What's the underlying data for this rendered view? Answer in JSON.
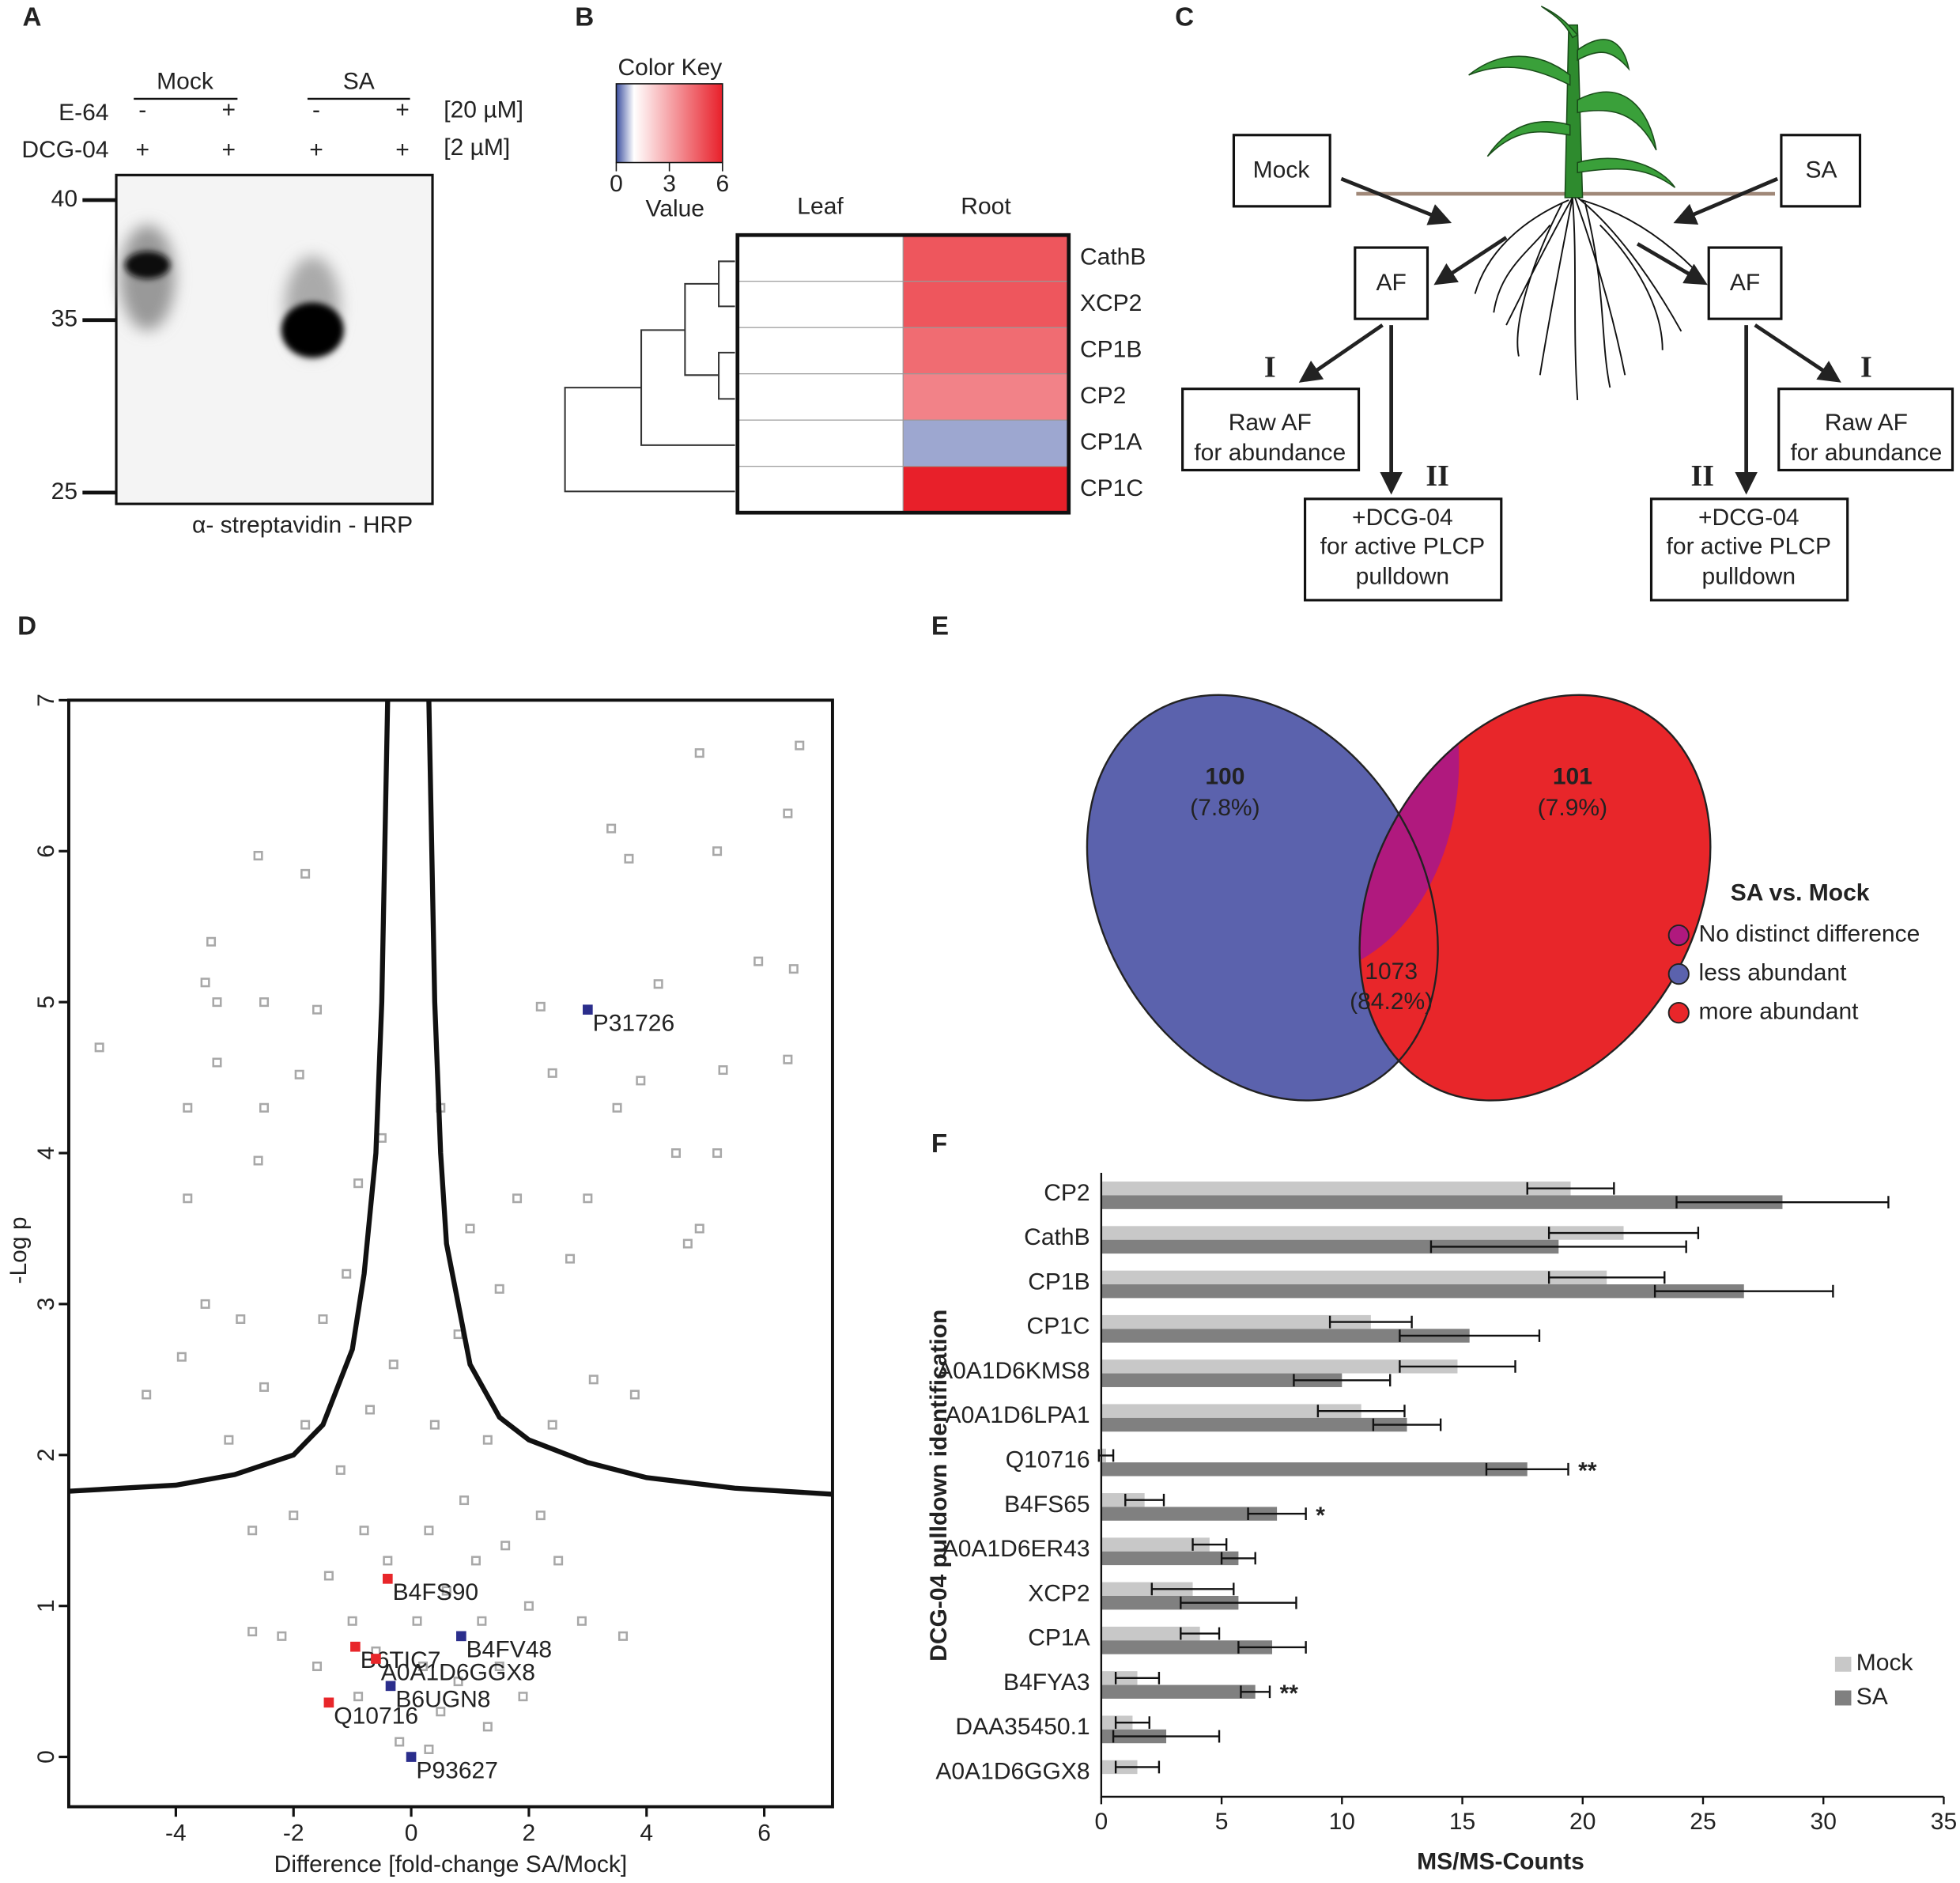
{
  "panel_labels": [
    "A",
    "B",
    "C",
    "D",
    "E",
    "F"
  ],
  "gel": {
    "groups": [
      "Mock",
      "SA"
    ],
    "rows": [
      {
        "name": "E-64",
        "signs": [
          "-",
          "+",
          "-",
          "+"
        ],
        "conc": "[20 µM]"
      },
      {
        "name": "DCG-04",
        "signs": [
          "+",
          "+",
          "+",
          "+"
        ],
        "conc": "[2 µM]"
      }
    ],
    "markers": [
      "40",
      "35",
      "25"
    ],
    "caption": "α- streptavidin - HRP"
  },
  "diagram": {
    "mock": "Mock",
    "sa": "SA",
    "af": "AF",
    "step1": "I",
    "step2": "II",
    "raw": [
      "Raw AF",
      "for abundance"
    ],
    "pulldown": [
      "+DCG-04",
      "for active PLCP",
      "pulldown"
    ]
  },
  "venn": {
    "regions": [
      {
        "count": "100",
        "percent": "(7.8%)"
      },
      {
        "count": "101",
        "percent": "(7.9%)"
      },
      {
        "count": "1073",
        "percent": "(84.2%)"
      }
    ],
    "legend_title": "SA vs. Mock",
    "legend": [
      {
        "label": "No distinct difference",
        "color": "#b0197e"
      },
      {
        "label": "less abundant",
        "color": "#5b62ad"
      },
      {
        "label": "more abundant",
        "color": "#e8262a"
      }
    ]
  },
  "chart_data": [
    {
      "type": "heatmap",
      "title": "Color Key",
      "colorbar_label": "Value",
      "colorbar_lim": [
        0,
        6
      ],
      "colorbar_ticks": [
        0,
        3,
        6
      ],
      "colors": [
        "#3b4fa0",
        "#ffffff",
        "#e8202a"
      ],
      "color_stops": [
        0,
        1,
        6
      ],
      "columns": [
        "Leaf",
        "Root"
      ],
      "rows": [
        "CathB",
        "XCP2",
        "CP1B",
        "CP2",
        "CP1A",
        "CP1C"
      ],
      "values": [
        [
          1,
          4.8
        ],
        [
          1,
          4.8
        ],
        [
          1,
          4.3
        ],
        [
          1,
          3.8
        ],
        [
          1,
          0.5
        ],
        [
          1,
          6
        ]
      ]
    },
    {
      "type": "scatter",
      "xlabel": "Difference [fold-change SA/Mock]",
      "ylabel": "-Log p",
      "xlim": [
        -5.82,
        7.16
      ],
      "ylim": [
        -0.33,
        7
      ],
      "xticks": [
        -4,
        -2,
        0,
        2,
        4,
        6
      ],
      "yticks": [
        0,
        1,
        2,
        3,
        4,
        5,
        6,
        7
      ],
      "series": [
        {
          "color": "#a8a8a8",
          "x": [
            6.6,
            4.9,
            3.4,
            6.4,
            5.2,
            3.7,
            -2.6,
            -1.8,
            -3.4,
            -3.5,
            5.9,
            6.5,
            -3.3,
            -2.5,
            4.2,
            -1.6,
            -5.3,
            2.2,
            6.4,
            -3.3,
            -1.9,
            3.9,
            5.3,
            -3.8,
            -2.5,
            2.4,
            3.5,
            4.5,
            5.2,
            -2.6,
            -3.8,
            3.0,
            4.9,
            4.7,
            -3.5,
            -1.1,
            2.7,
            -2.9,
            -2.5,
            -3.9,
            -4.5,
            -3.1,
            3.1,
            3.8,
            2.4,
            -2.7,
            -2.2,
            -2.7,
            2.5,
            2.9,
            3.6,
            -1.5,
            -0.9,
            -0.5,
            0.5,
            1.0,
            1.5,
            1.8,
            -1.8,
            -1.2,
            -0.8,
            -0.4,
            0.3,
            0.6,
            0.9,
            1.3,
            1.6,
            2.0,
            -1.4,
            -1.0,
            -0.6,
            0.2,
            0.5,
            0.8,
            1.2,
            1.5,
            -0.2,
            0.3,
            -0.9,
            1.9,
            -1.6,
            1.1,
            0.4,
            -0.3,
            0.8,
            -0.7,
            2.2,
            -2.0,
            0.1,
            1.3
          ],
          "y": [
            6.7,
            6.65,
            6.15,
            6.25,
            6.0,
            5.95,
            5.97,
            5.85,
            5.4,
            5.13,
            5.27,
            5.22,
            5.0,
            5.0,
            5.12,
            4.95,
            4.7,
            4.97,
            4.62,
            4.6,
            4.52,
            4.48,
            4.55,
            4.3,
            4.3,
            4.53,
            4.3,
            4.0,
            4.0,
            3.95,
            3.7,
            3.7,
            3.5,
            3.4,
            3.0,
            3.2,
            3.3,
            2.9,
            2.45,
            2.65,
            2.4,
            2.1,
            2.5,
            2.4,
            2.2,
            1.5,
            0.8,
            0.83,
            1.3,
            0.9,
            0.8,
            2.9,
            3.8,
            4.1,
            4.3,
            3.5,
            3.1,
            3.7,
            2.2,
            1.9,
            1.5,
            1.3,
            1.5,
            1.1,
            1.7,
            2.1,
            1.4,
            1.0,
            1.2,
            0.9,
            0.7,
            0.6,
            0.3,
            0.5,
            0.9,
            0.6,
            0.1,
            0.05,
            0.4,
            0.4,
            0.6,
            1.3,
            2.2,
            2.6,
            2.8,
            2.3,
            1.6,
            1.6,
            0.9,
            0.2
          ]
        }
      ],
      "points": [
        {
          "label": "P31726",
          "x": 3.0,
          "y": 4.95,
          "color": "#2b2e8c"
        },
        {
          "label": "B4FS90",
          "x": -0.4,
          "y": 1.18,
          "color": "#e8262a"
        },
        {
          "label": "B4FV48",
          "x": 0.85,
          "y": 0.8,
          "color": "#2b2e8c"
        },
        {
          "label": "B6TIC7",
          "x": -0.95,
          "y": 0.73,
          "color": "#e8262a"
        },
        {
          "label": "A0A1D6GGX8",
          "x": -0.6,
          "y": 0.65,
          "color": "#e8262a"
        },
        {
          "label": "B6UGN8",
          "x": -0.35,
          "y": 0.47,
          "color": "#2b2e8c"
        },
        {
          "label": "Q10716",
          "x": -1.4,
          "y": 0.36,
          "color": "#e8262a"
        },
        {
          "label": "P93627",
          "x": 0.0,
          "y": 0.0,
          "color": "#2b2e8c"
        }
      ],
      "lines": [
        {
          "color": "#111111",
          "x": [
            -5.82,
            -4,
            -3,
            -2,
            -1.5,
            -1,
            -0.8,
            -0.6,
            -0.5,
            -0.45,
            -0.4
          ],
          "y": [
            1.76,
            1.8,
            1.87,
            2.0,
            2.2,
            2.7,
            3.2,
            4.0,
            5.0,
            6.0,
            7.0
          ]
        },
        {
          "color": "#111111",
          "x": [
            0.3,
            0.35,
            0.4,
            0.5,
            0.6,
            0.8,
            1,
            1.5,
            2,
            3,
            4,
            5.5,
            7.16
          ],
          "y": [
            7.0,
            6.0,
            5.0,
            4.0,
            3.4,
            3.0,
            2.6,
            2.25,
            2.1,
            1.95,
            1.85,
            1.78,
            1.74
          ]
        }
      ]
    },
    {
      "type": "hbar",
      "xlabel": "MS/MS-Counts",
      "ylabel": "DCG-04 pulldown identification",
      "xlim": [
        0,
        35
      ],
      "xticks": [
        0,
        5,
        10,
        15,
        20,
        25,
        30,
        35
      ],
      "legend": "lower right",
      "categories": [
        "CP2",
        "CathB",
        "CP1B",
        "CP1C",
        "A0A1D6KMS8",
        "A0A1D6LPA1",
        "Q10716",
        "B4FS65",
        "A0A1D6ER43",
        "XCP2",
        "CP1A",
        "B4FYA3",
        "DAA35450.1",
        "A0A1D6GGX8"
      ],
      "series": [
        {
          "name": "Mock",
          "color": "#c8c8c8",
          "values": [
            19.5,
            21.7,
            21.0,
            11.2,
            14.8,
            10.8,
            0.2,
            1.8,
            4.5,
            3.8,
            4.1,
            1.5,
            1.3,
            1.5
          ],
          "errors": [
            1.8,
            3.1,
            2.4,
            1.7,
            2.4,
            1.8,
            0.3,
            0.8,
            0.7,
            1.7,
            0.8,
            0.9,
            0.7,
            0.9
          ]
        },
        {
          "name": "SA",
          "color": "#808080",
          "values": [
            28.3,
            19.0,
            26.7,
            15.3,
            10.0,
            12.7,
            17.7,
            7.3,
            5.7,
            5.7,
            7.1,
            6.4,
            2.7,
            null
          ],
          "errors": [
            4.4,
            5.3,
            3.7,
            2.9,
            2.0,
            1.4,
            1.7,
            1.2,
            0.7,
            2.4,
            1.4,
            0.6,
            2.2,
            null
          ]
        }
      ],
      "annotations": [
        {
          "category": "Q10716",
          "text": "**"
        },
        {
          "category": "B4FS65",
          "text": "*"
        },
        {
          "category": "B4FYA3",
          "text": "**"
        }
      ]
    }
  ]
}
